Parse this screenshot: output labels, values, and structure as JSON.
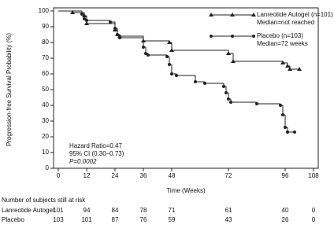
{
  "chart_data": {
    "type": "step",
    "y_label": "Progression-free Survival Probability (%)",
    "x_label": "Time (Weeks)",
    "xlim": [
      -2,
      110
    ],
    "ylim": [
      0,
      100
    ],
    "xticks": [
      0,
      12,
      24,
      36,
      48,
      72,
      96,
      108
    ],
    "yticks": [
      0,
      10,
      20,
      30,
      40,
      50,
      60,
      70,
      80,
      90,
      100
    ],
    "series": [
      {
        "name": "Lanreotide Autogel (n=101)",
        "note": "Median=not reached",
        "color": "#222222",
        "marker": "triangle",
        "x": [
          0,
          6,
          11,
          12,
          24,
          25,
          26,
          36,
          47,
          48,
          72,
          74,
          95,
          97,
          98,
          102
        ],
        "values": [
          100,
          99,
          97,
          92,
          88,
          85,
          84,
          81,
          80,
          75,
          73,
          68,
          67,
          65,
          63,
          63
        ]
      },
      {
        "name": "Placebo (n=103)",
        "note": "Median=72 weeks",
        "color": "#222222",
        "marker": "circle",
        "x": [
          0,
          10,
          11,
          12,
          22,
          24,
          25,
          26,
          36,
          37,
          38,
          46,
          47,
          48,
          50,
          58,
          62,
          70,
          71,
          72,
          73,
          84,
          94,
          95,
          96,
          97,
          100
        ],
        "values": [
          100,
          98,
          95,
          94,
          93,
          89,
          85,
          83,
          77,
          73,
          72,
          71,
          66,
          60,
          59,
          55,
          54,
          52,
          48,
          44,
          42,
          41,
          40,
          34,
          26,
          23,
          23
        ]
      }
    ],
    "annotations": [
      "Hazard Ratio=0.47",
      "95% CI (0.30–0.73)",
      "P=0.0002"
    ],
    "at_risk": {
      "title": "Number of subjects still at risk",
      "x": [
        0,
        12,
        24,
        36,
        48,
        72,
        96,
        108
      ],
      "rows": [
        {
          "name": "Lanreotide Autogel",
          "values": [
            101,
            94,
            84,
            78,
            71,
            61,
            40,
            0
          ]
        },
        {
          "name": "Placebo",
          "values": [
            103,
            101,
            87,
            76,
            59,
            43,
            26,
            0
          ]
        }
      ]
    }
  }
}
